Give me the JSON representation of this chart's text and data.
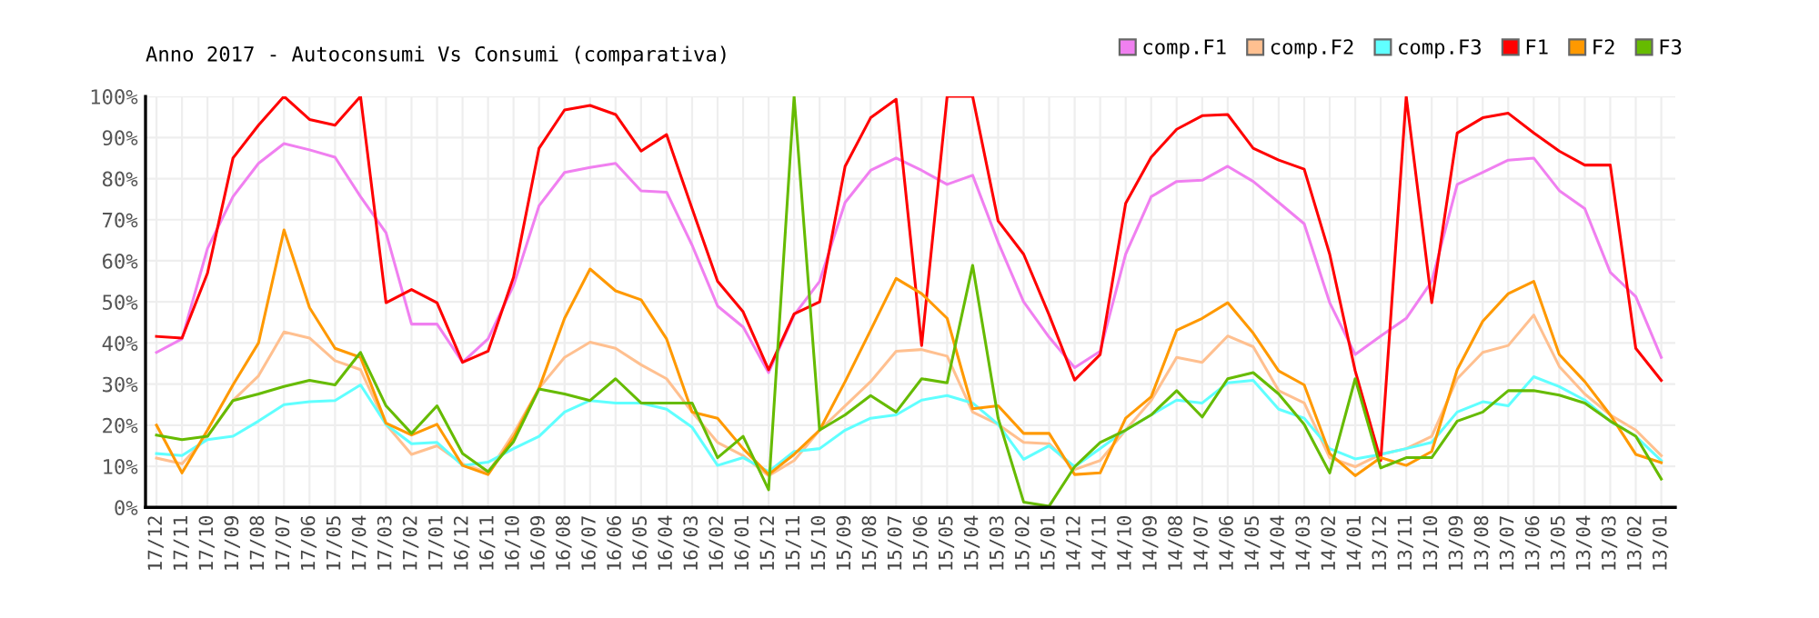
{
  "chart_data": {
    "type": "line",
    "title": "Anno 2017 - Autoconsumi Vs Consumi (comparativa)",
    "categories": [
      "17/12",
      "17/11",
      "17/10",
      "17/09",
      "17/08",
      "17/07",
      "17/06",
      "17/05",
      "17/04",
      "17/03",
      "17/02",
      "17/01",
      "16/12",
      "16/11",
      "16/10",
      "16/09",
      "16/08",
      "16/07",
      "16/06",
      "16/05",
      "16/04",
      "16/03",
      "16/02",
      "16/01",
      "15/12",
      "15/11",
      "15/10",
      "15/09",
      "15/08",
      "15/07",
      "15/06",
      "15/05",
      "15/04",
      "15/03",
      "15/02",
      "15/01",
      "14/12",
      "14/11",
      "14/10",
      "14/09",
      "14/08",
      "14/07",
      "14/06",
      "14/05",
      "14/04",
      "14/03",
      "14/02",
      "14/01",
      "13/12",
      "13/11",
      "13/10",
      "13/09",
      "13/08",
      "13/07",
      "13/06",
      "13/05",
      "13/04",
      "13/03",
      "13/02",
      "13/01"
    ],
    "series": [
      {
        "name": "comp.F1",
        "color": "#f080f0",
        "values": [
          37.7,
          41,
          63,
          75.6,
          83.7,
          88.5,
          87,
          85.2,
          75.6,
          66.8,
          44.6,
          44.6,
          35.3,
          41,
          54,
          73.4,
          81.5,
          82.7,
          83.7,
          77,
          76.7,
          63.8,
          49,
          43.9,
          32.8,
          46.8,
          55,
          74.2,
          82,
          85,
          82,
          78.6,
          80.8,
          64.5,
          50,
          41.4,
          34,
          38,
          61.6,
          75.6,
          79.3,
          79.6,
          83,
          79.3,
          74.2,
          69,
          49.8,
          37.2,
          41.7,
          46,
          55,
          78.6,
          81.5,
          84.5,
          85,
          77.1,
          72.7,
          57.2,
          51.3,
          36.5
        ]
      },
      {
        "name": "comp.F2",
        "color": "#ffc090",
        "values": [
          12,
          10.6,
          17.3,
          26,
          32,
          42.7,
          41.2,
          35.7,
          33.5,
          20.2,
          12.9,
          15,
          10.6,
          8.4,
          18,
          29,
          36.5,
          40.2,
          38.7,
          34.7,
          31.3,
          23.2,
          15.8,
          12.6,
          7.7,
          11.4,
          18.8,
          24.7,
          30.6,
          38,
          38.4,
          36.8,
          23.2,
          20.2,
          15.8,
          15.5,
          9.2,
          11.4,
          18.8,
          26,
          36.5,
          35.3,
          41.7,
          39.1,
          28.4,
          25.4,
          12.1,
          9.9,
          12.9,
          14.3,
          17.3,
          31.3,
          37.7,
          39.4,
          46.8,
          34.3,
          27.6,
          22.5,
          18.8,
          12.6
        ]
      },
      {
        "name": "comp.F3",
        "color": "#60ffff",
        "values": [
          13.1,
          12.6,
          16.5,
          17.3,
          21,
          25,
          25.7,
          26,
          29.8,
          20.2,
          15.5,
          15.8,
          10.2,
          11,
          14.3,
          17.3,
          23.2,
          26,
          25.4,
          25.4,
          23.9,
          19.5,
          10.2,
          12.1,
          8.7,
          13.6,
          14.3,
          18.8,
          21.7,
          22.5,
          26.1,
          27.2,
          25.4,
          20.2,
          11.7,
          15,
          9.9,
          14.3,
          18.8,
          22.5,
          26.1,
          25.4,
          30.3,
          30.9,
          23.9,
          21.7,
          14.3,
          11.8,
          12.9,
          14.3,
          15.8,
          23.2,
          25.7,
          24.7,
          31.8,
          29.4,
          26.1,
          21,
          17.3,
          11.4
        ]
      },
      {
        "name": "F1",
        "color": "#ff0000",
        "values": [
          41.6,
          41.2,
          57,
          85,
          93,
          100,
          94.4,
          93,
          100,
          49.8,
          53,
          49.8,
          35.3,
          38,
          56,
          87.4,
          96.7,
          97.8,
          95.6,
          86.7,
          90.7,
          72.7,
          55,
          47.6,
          33.5,
          47.1,
          50,
          83,
          94.8,
          99.3,
          39.4,
          100,
          100,
          69.7,
          61.6,
          46.8,
          31,
          37.2,
          74,
          85.2,
          92,
          95.3,
          95.6,
          87.4,
          84.5,
          82.3,
          61.6,
          33.2,
          11.4,
          100,
          49.8,
          91.1,
          94.8,
          95.9,
          91.1,
          86.7,
          83.3,
          83.3,
          38.7,
          30.9
        ]
      },
      {
        "name": "F2",
        "color": "#ff9900",
        "values": [
          20,
          8.4,
          18.8,
          29.8,
          40,
          67.5,
          48.6,
          38.7,
          36.5,
          20.5,
          17.6,
          20.2,
          10.2,
          8,
          17,
          29,
          46,
          58,
          52.7,
          50.5,
          41,
          23.2,
          21.7,
          14.3,
          8,
          12.9,
          18.8,
          30.6,
          43.1,
          55.7,
          52,
          46,
          24,
          24.7,
          18,
          18,
          8,
          8.4,
          21.7,
          26.9,
          43.1,
          46,
          49.8,
          42.4,
          33.2,
          29.8,
          13.1,
          7.7,
          12.1,
          10.2,
          13.6,
          33.5,
          45.3,
          52,
          55,
          37.2,
          30.6,
          22.5,
          12.9,
          10.9
        ]
      },
      {
        "name": "F3",
        "color": "#66bb00",
        "values": [
          17.6,
          16.5,
          17.3,
          26,
          27.6,
          29.4,
          30.9,
          29.8,
          37.7,
          24.7,
          18,
          24.7,
          13.1,
          8.7,
          16,
          28.8,
          27.6,
          26,
          31.3,
          25.4,
          25.4,
          25.4,
          12.1,
          17.3,
          4.3,
          100,
          18.8,
          22.5,
          27.2,
          23.2,
          31.3,
          30.3,
          58.9,
          21.7,
          1.3,
          0.3,
          9.9,
          15.8,
          18.8,
          22.5,
          28.4,
          22,
          31.3,
          32.8,
          27.6,
          20.2,
          8.4,
          31.3,
          9.6,
          12.1,
          12.1,
          21,
          23.2,
          28.4,
          28.4,
          27.3,
          25.4,
          21,
          17.3,
          6.9
        ]
      }
    ],
    "ylim": [
      0,
      100
    ],
    "yticks": [
      {
        "value": 0,
        "label": "0%"
      },
      {
        "value": 10,
        "label": "10%"
      },
      {
        "value": 20,
        "label": "20%"
      },
      {
        "value": 30,
        "label": "30%"
      },
      {
        "value": 40,
        "label": "40%"
      },
      {
        "value": 50,
        "label": "50%"
      },
      {
        "value": 60,
        "label": "60%"
      },
      {
        "value": 70,
        "label": "70%"
      },
      {
        "value": 80,
        "label": "80%"
      },
      {
        "value": 90,
        "label": "90%"
      },
      {
        "value": 100,
        "label": "100%"
      }
    ],
    "grid": true,
    "legend": "top right",
    "marker": "none",
    "line_style": "solid"
  }
}
